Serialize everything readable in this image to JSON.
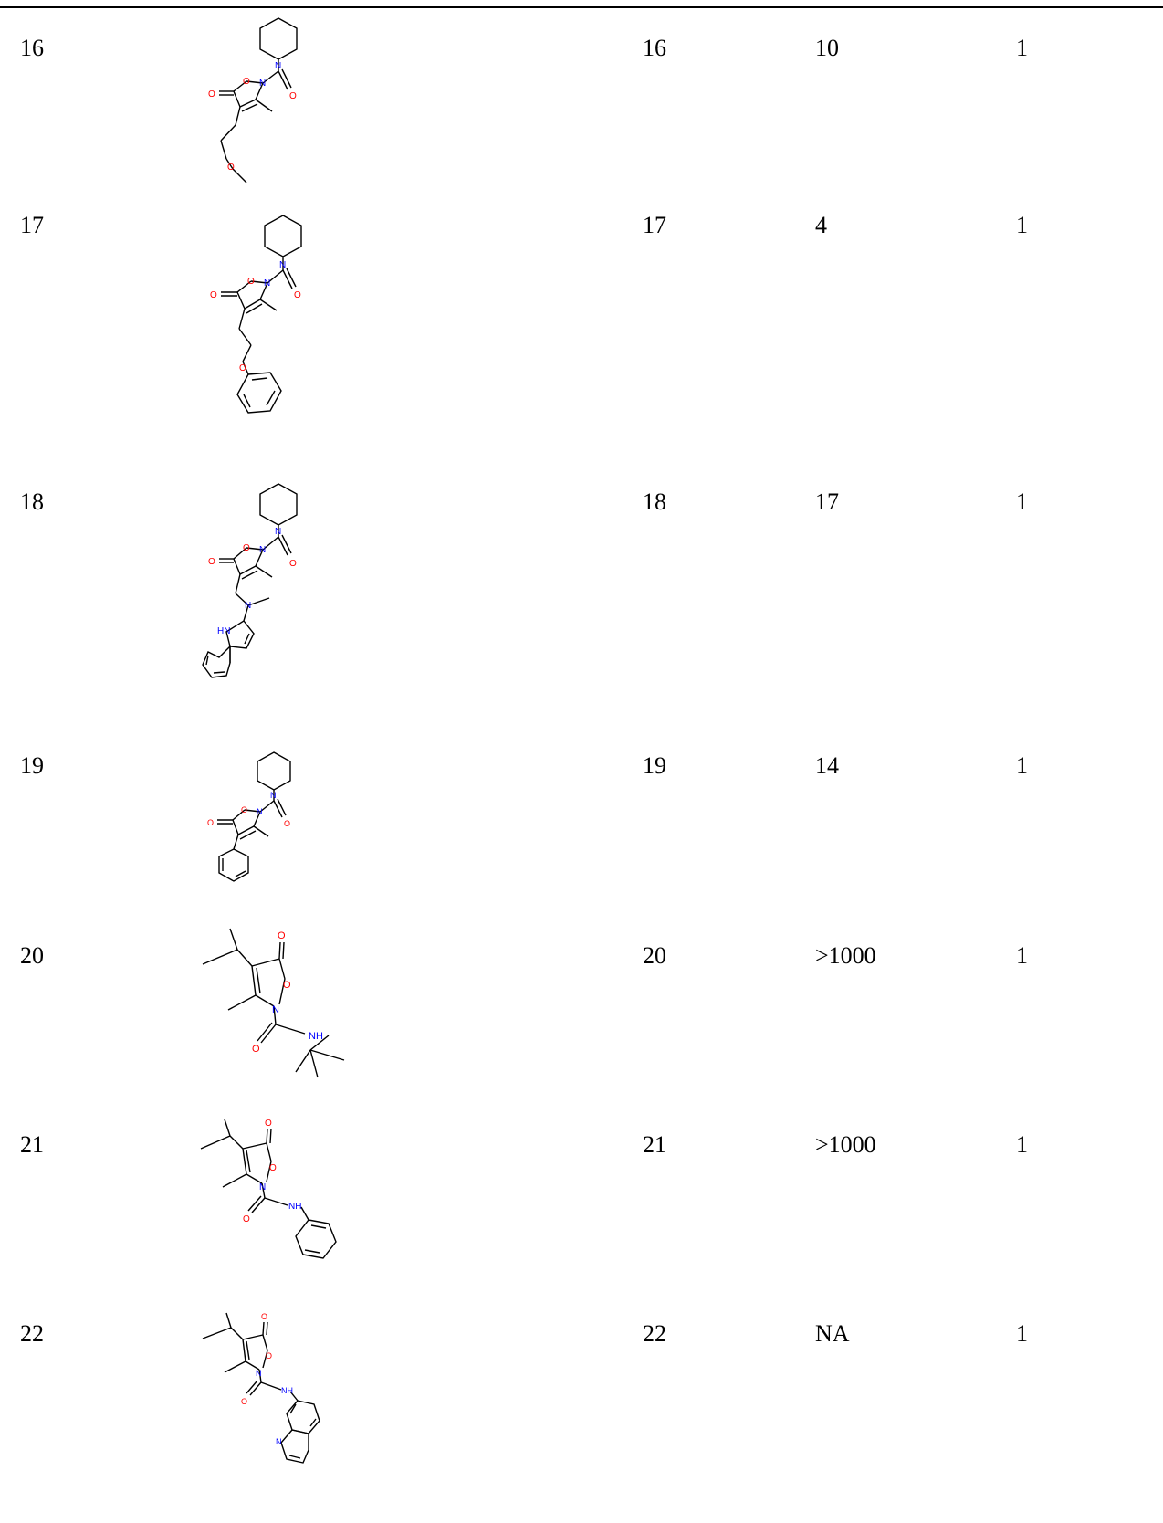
{
  "rows": [
    {
      "id": "16",
      "compound": "16",
      "value": "10",
      "n": "1"
    },
    {
      "id": "17",
      "compound": "17",
      "value": "4",
      "n": "1"
    },
    {
      "id": "18",
      "compound": "18",
      "value": "17",
      "n": "1"
    },
    {
      "id": "19",
      "compound": "19",
      "value": "14",
      "n": "1"
    },
    {
      "id": "20",
      "compound": "20",
      "value": ">1000",
      "n": "1"
    },
    {
      "id": "21",
      "compound": "21",
      "value": ">1000",
      "n": "1"
    },
    {
      "id": "22",
      "compound": "22",
      "value": "NA",
      "n": "1"
    }
  ],
  "atom_labels": {
    "N": "N",
    "O": "O",
    "NH": "NH",
    "HN": "HN"
  },
  "colors": {
    "bond": "#000000",
    "nitrogen": "#0000ff",
    "oxygen": "#ff0000"
  }
}
